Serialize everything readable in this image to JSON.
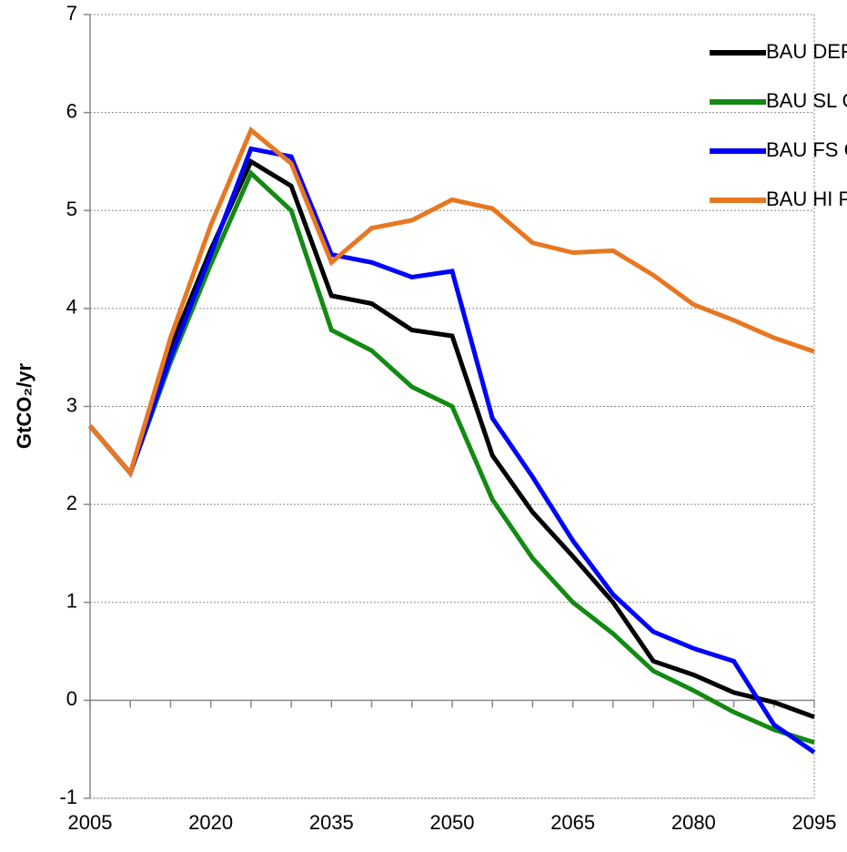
{
  "chart_data": {
    "type": "line",
    "ylabel": "GtCO₂/yr",
    "x": [
      2005,
      2010,
      2015,
      2020,
      2025,
      2030,
      2035,
      2040,
      2045,
      2050,
      2055,
      2060,
      2065,
      2070,
      2075,
      2080,
      2085,
      2090,
      2095
    ],
    "xlim": [
      2005,
      2095
    ],
    "xticks": [
      2005,
      2020,
      2035,
      2050,
      2065,
      2080,
      2095
    ],
    "ylim": [
      -1,
      7
    ],
    "yticks": [
      -1,
      0,
      1,
      2,
      3,
      4,
      5,
      6,
      7
    ],
    "grid": true,
    "legend": "upper right",
    "series": [
      {
        "name": "BAU DEF",
        "color": "#000000",
        "values": [
          2.8,
          2.32,
          3.6,
          4.6,
          5.5,
          5.25,
          4.13,
          4.05,
          3.78,
          3.72,
          2.5,
          1.92,
          1.47,
          1.0,
          0.4,
          0.26,
          0.08,
          -0.02,
          -0.17
        ]
      },
      {
        "name": "BAU SL Gr",
        "color": "#138a13",
        "values": [
          2.8,
          2.32,
          3.45,
          4.45,
          5.38,
          5.0,
          3.78,
          3.57,
          3.2,
          3.0,
          2.05,
          1.45,
          1.0,
          0.68,
          0.3,
          0.1,
          -0.12,
          -0.3,
          -0.43
        ]
      },
      {
        "name": "BAU FS Gr",
        "color": "#0000ff",
        "values": [
          2.8,
          2.32,
          3.5,
          4.55,
          5.63,
          5.55,
          4.55,
          4.47,
          4.32,
          4.38,
          2.88,
          2.28,
          1.63,
          1.08,
          0.7,
          0.53,
          0.4,
          -0.25,
          -0.53
        ]
      },
      {
        "name": "BAU HI Pop",
        "color": "#e87722",
        "values": [
          2.8,
          2.32,
          3.7,
          4.85,
          5.82,
          5.48,
          4.47,
          4.82,
          4.9,
          5.11,
          5.02,
          4.67,
          4.57,
          4.59,
          4.34,
          4.04,
          3.88,
          3.7,
          3.56
        ]
      }
    ]
  }
}
